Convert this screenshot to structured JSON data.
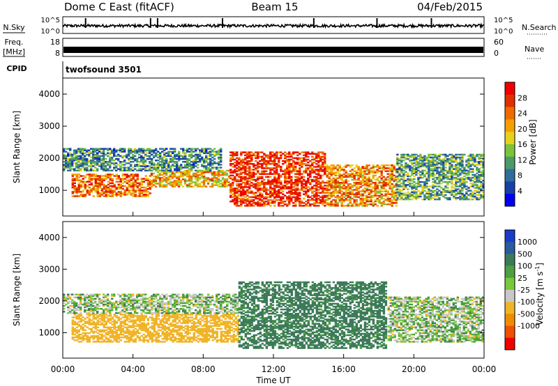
{
  "header": {
    "station": "Dome C East (fitACF)",
    "beam": "Beam 15",
    "date": "04/Feb/2015"
  },
  "noise_panel": {
    "left_label": "N.Sky",
    "right_label": "N.Search",
    "left_ticks": [
      "10^5",
      "10^0"
    ],
    "right_ticks": [
      "10^5",
      "10^0"
    ]
  },
  "freq_panel": {
    "left_label_line1": "Freq.",
    "left_label_line2": "[MHz]",
    "right_label": "Nave",
    "left_ticks": [
      "18",
      "8"
    ],
    "right_ticks": [
      "60",
      "0"
    ]
  },
  "cpid_panel": {
    "label": "CPID",
    "program": "twofsound 3501"
  },
  "colors": {
    "power_scale": [
      "#0000ee",
      "#1b3fa8",
      "#2f6d9a",
      "#4c9a6a",
      "#7ac43a",
      "#e6d21c",
      "#f5a000",
      "#f06a00",
      "#e03000",
      "#ee0000"
    ],
    "velocity_scale": [
      "#1a3cc8",
      "#2a5aa0",
      "#3c7a5a",
      "#4ca040",
      "#78c83c",
      "#c8c8c8",
      "#f0b428",
      "#f08c00",
      "#f05000",
      "#ee0000"
    ],
    "ground_scatter": "#c8c8c8"
  },
  "chart_data": [
    {
      "type": "heatmap",
      "quantity": "power",
      "xlabel": "",
      "ylabel": "Slant Range [km]",
      "x_range": [
        "00:00",
        "24:00"
      ],
      "y_range": [
        200,
        4500
      ],
      "y_ticks": [
        "1000",
        "2000",
        "3000",
        "4000"
      ],
      "colorbar": {
        "label": "Power [dB]",
        "range": [
          0,
          32
        ],
        "ticks": [
          "4",
          "8",
          "12",
          "16",
          "20",
          "24",
          "28"
        ]
      },
      "regions": [
        {
          "t_start": 0.5,
          "t_end": 5.0,
          "r_low": 800,
          "r_high": 1500,
          "value": 24
        },
        {
          "t_start": 5.0,
          "t_end": 9.5,
          "r_low": 1100,
          "r_high": 1600,
          "value": 20
        },
        {
          "t_start": 0.0,
          "t_end": 9.0,
          "r_low": 1600,
          "r_high": 2300,
          "value": 10
        },
        {
          "t_start": 9.5,
          "t_end": 15.0,
          "r_low": 500,
          "r_high": 2200,
          "value": 28
        },
        {
          "t_start": 15.0,
          "t_end": 19.0,
          "r_low": 500,
          "r_high": 1800,
          "value": 22
        },
        {
          "t_start": 19.0,
          "t_end": 24.0,
          "r_low": 700,
          "r_high": 2100,
          "value": 12
        }
      ]
    },
    {
      "type": "heatmap",
      "quantity": "velocity",
      "xlabel": "Time UT",
      "ylabel": "Slant Range [km]",
      "x_range": [
        "00:00",
        "24:00"
      ],
      "x_ticks": [
        "00:00",
        "04:00",
        "08:00",
        "12:00",
        "16:00",
        "20:00",
        "00:00"
      ],
      "y_range": [
        200,
        4500
      ],
      "y_ticks": [
        "1000",
        "2000",
        "3000",
        "4000"
      ],
      "colorbar": {
        "label_text": "Velocity",
        "label_unit": "[m s",
        "label_exp": "-1",
        "label_close": "]",
        "ticks": [
          "1000",
          "500",
          "100",
          "25",
          "-25",
          "-100",
          "-500",
          "-1000"
        ]
      },
      "regions": [
        {
          "t_start": 0.5,
          "t_end": 10.0,
          "r_low": 700,
          "r_high": 1600,
          "value": -300
        },
        {
          "t_start": 0.0,
          "t_end": 10.0,
          "r_low": 1600,
          "r_high": 2200,
          "value": 0
        },
        {
          "t_start": 10.0,
          "t_end": 18.5,
          "r_low": 500,
          "r_high": 2600,
          "value": 200
        },
        {
          "t_start": 18.5,
          "t_end": 24.0,
          "r_low": 700,
          "r_high": 2100,
          "value": 0
        }
      ]
    }
  ]
}
